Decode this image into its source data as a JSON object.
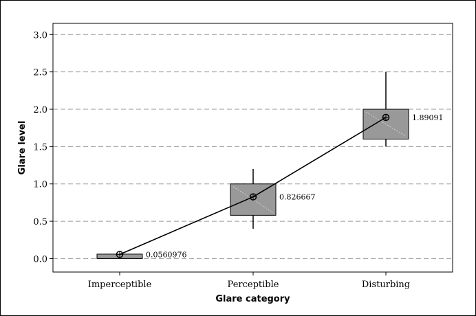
{
  "chart_data": {
    "type": "box",
    "xlabel": "Glare category",
    "ylabel": "Glare level",
    "categories": [
      "Imperceptible",
      "Perceptible",
      "Disturbing"
    ],
    "ylim": [
      -0.18,
      3.15
    ],
    "yticks": [
      0.0,
      0.5,
      1.0,
      1.5,
      2.0,
      2.5,
      3.0
    ],
    "ytick_labels": [
      "0.0",
      "0.5",
      "1.0",
      "1.5",
      "2.0",
      "2.5",
      "3.0"
    ],
    "grid": "horizontal dashed",
    "boxes": [
      {
        "category": "Imperceptible",
        "q1": 0.0,
        "q3": 0.06,
        "whisker_low": 0.0,
        "whisker_high": 0.06
      },
      {
        "category": "Perceptible",
        "q1": 0.58,
        "q3": 1.0,
        "whisker_low": 0.4,
        "whisker_high": 1.2
      },
      {
        "category": "Disturbing",
        "q1": 1.6,
        "q3": 2.0,
        "whisker_low": 1.5,
        "whisker_high": 2.5
      }
    ],
    "means": [
      0.0560976,
      0.826667,
      1.89091
    ],
    "mean_labels": [
      "0.0560976",
      "0.826667",
      "1.89091"
    ],
    "colors": {
      "box_fill": "#999999",
      "grid": "#999999",
      "line": "#000000"
    }
  }
}
